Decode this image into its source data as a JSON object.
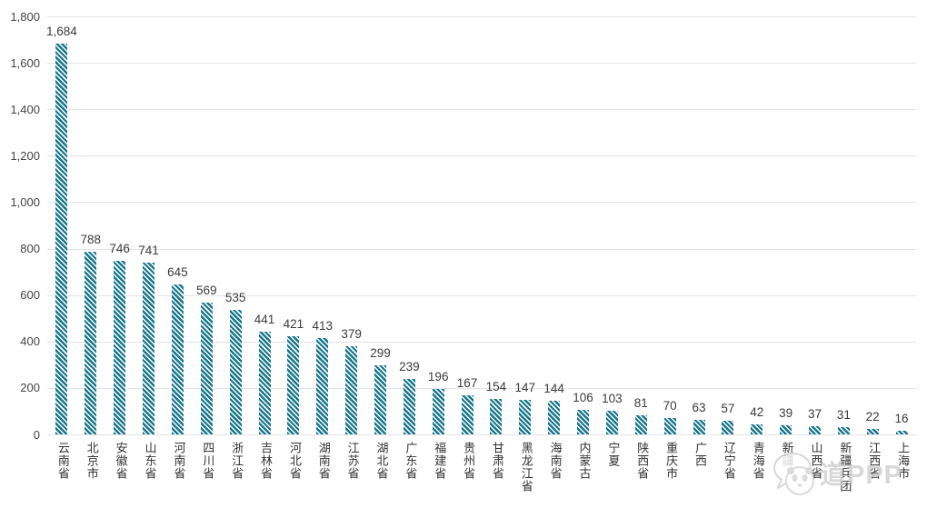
{
  "chart_data": {
    "type": "bar",
    "categories": [
      "云南省",
      "北京市",
      "安徽省",
      "山东省",
      "河南省",
      "四川省",
      "浙江省",
      "吉林省",
      "河北省",
      "湖南省",
      "江苏省",
      "湖北省",
      "广东省",
      "福建省",
      "贵州省",
      "甘肃省",
      "黑龙江省",
      "海南省",
      "内蒙古",
      "宁夏",
      "陕西省",
      "重庆市",
      "广西",
      "辽宁省",
      "青海省",
      "新疆",
      "山西省",
      "新疆兵团",
      "江西省",
      "上海市"
    ],
    "values": [
      1684,
      788,
      746,
      741,
      645,
      569,
      535,
      441,
      421,
      413,
      379,
      299,
      239,
      196,
      167,
      154,
      147,
      144,
      106,
      103,
      81,
      70,
      63,
      57,
      42,
      39,
      37,
      31,
      22,
      16
    ],
    "title": "",
    "xlabel": "",
    "ylabel": "",
    "ylim": [
      0,
      1800
    ],
    "ytick_step": 200,
    "grid": true,
    "legend": "none",
    "bar_style": "diagonal-hatch",
    "colors": {
      "bar": "#17768a",
      "bar_stripe": "#ffffff",
      "grid": "#e4e4e4",
      "value_label": "#3b3b3b",
      "axis_label": "#454545",
      "category_label": "#333333"
    }
  },
  "watermark": {
    "text": "道PPP",
    "icon": "panda-speech-bubble-icon",
    "color": "#cfcfcf"
  }
}
